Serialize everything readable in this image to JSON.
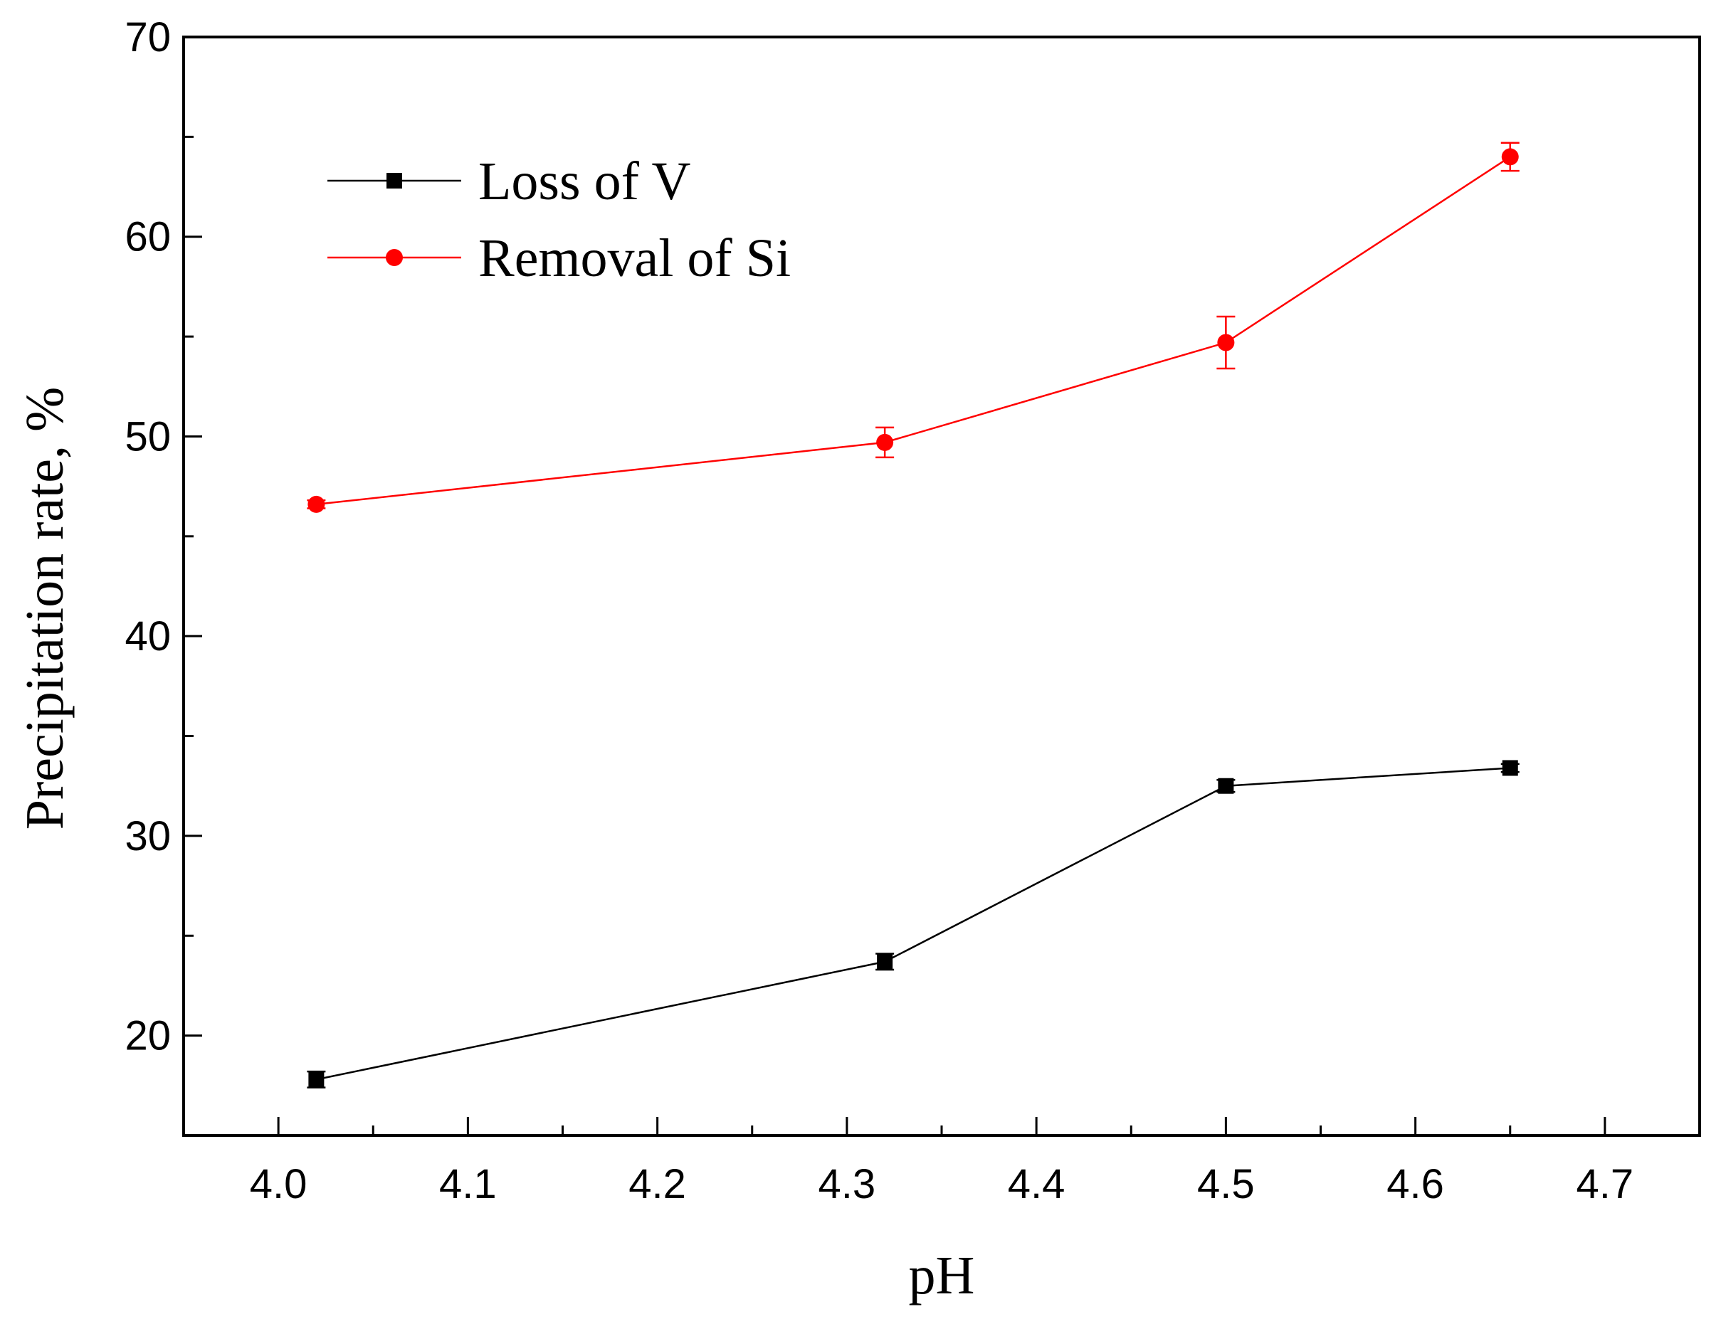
{
  "chart_data": {
    "type": "line",
    "title": "",
    "xlabel": "pH",
    "ylabel": "Precipitation rate, %",
    "xlim": [
      3.95,
      4.75
    ],
    "ylim": [
      15,
      70
    ],
    "x_ticks": [
      4.0,
      4.1,
      4.2,
      4.3,
      4.4,
      4.5,
      4.6,
      4.7
    ],
    "x_tick_labels": [
      "4.0",
      "4.1",
      "4.2",
      "4.3",
      "4.4",
      "4.5",
      "4.6",
      "4.7"
    ],
    "x_minor_ticks": [
      4.05,
      4.15,
      4.25,
      4.35,
      4.45,
      4.55,
      4.65
    ],
    "y_ticks": [
      20,
      30,
      40,
      50,
      60,
      70
    ],
    "y_tick_labels": [
      "20",
      "30",
      "40",
      "50",
      "60",
      "70"
    ],
    "y_minor_ticks": [
      25,
      35,
      45,
      55,
      65
    ],
    "grid": false,
    "legend_position": "top-left",
    "series": [
      {
        "name": "Loss of V",
        "color": "#000000",
        "marker": "square",
        "x": [
          4.02,
          4.32,
          4.5,
          4.65
        ],
        "values": [
          17.8,
          23.7,
          32.5,
          33.4
        ],
        "errors": [
          0.4,
          0.4,
          0.3,
          0.2
        ]
      },
      {
        "name": "Removal of Si",
        "color": "#ff0000",
        "marker": "circle",
        "x": [
          4.02,
          4.32,
          4.5,
          4.65
        ],
        "values": [
          46.6,
          49.7,
          54.7,
          64.0
        ],
        "errors": [
          0.2,
          0.75,
          1.3,
          0.7
        ]
      }
    ]
  }
}
